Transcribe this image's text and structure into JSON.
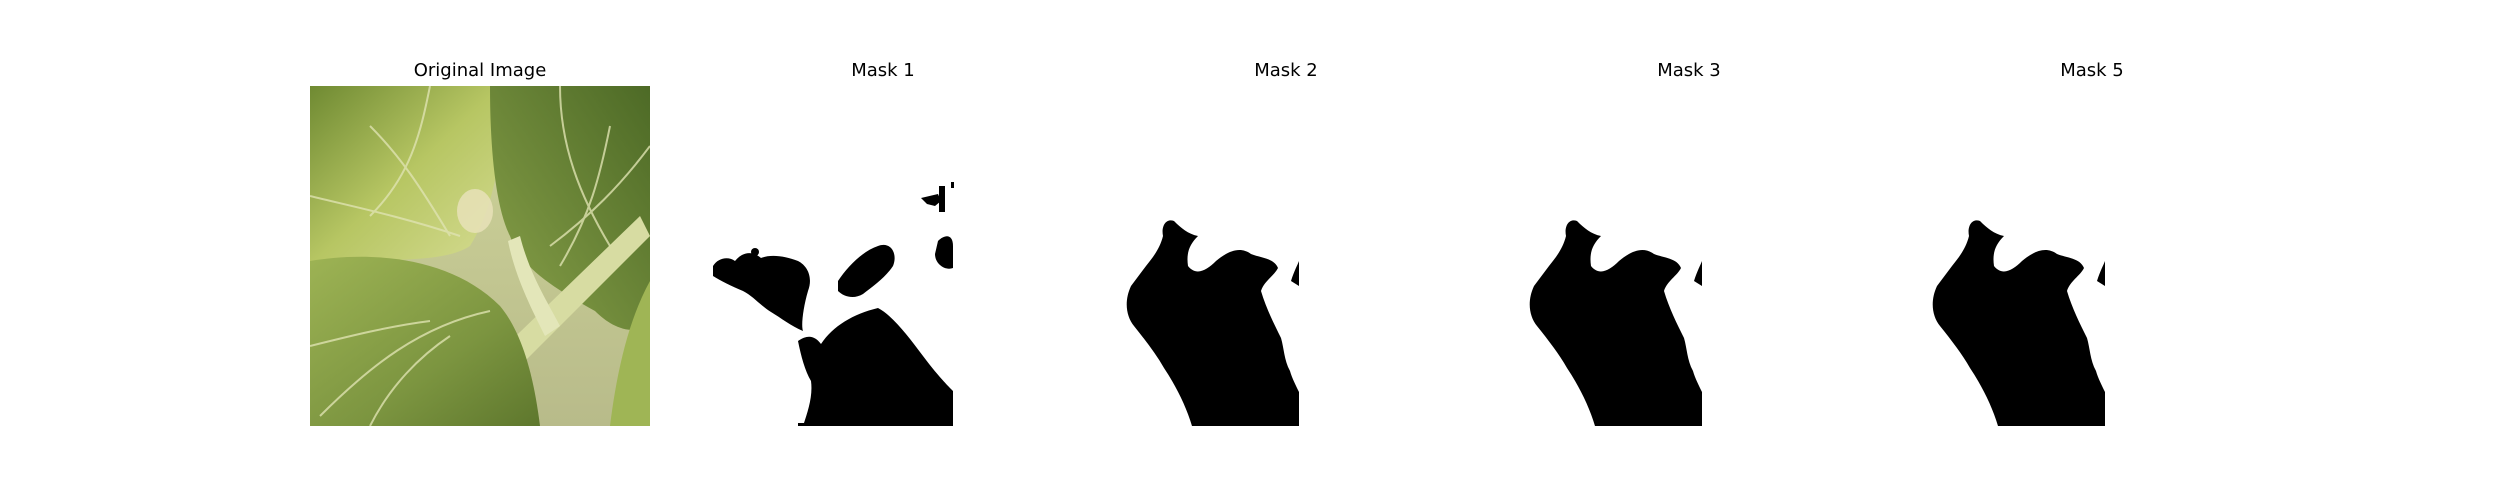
{
  "figure": {
    "background": "#ffffff",
    "panels": [
      {
        "title": "Original Image",
        "kind": "photo",
        "description_colors": {
          "leaf_light": "#c9d27a",
          "leaf_mid": "#8fa548",
          "leaf_dark": "#5f7a2c",
          "stem": "#d9dfa6"
        }
      },
      {
        "title": "Mask 1",
        "kind": "mask",
        "fill": "#000000"
      },
      {
        "title": "Mask 2",
        "kind": "mask",
        "fill": "#000000"
      },
      {
        "title": "Mask 3",
        "kind": "mask",
        "fill": "#000000"
      },
      {
        "title": "Mask 5",
        "kind": "mask",
        "fill": "#000000"
      }
    ]
  }
}
